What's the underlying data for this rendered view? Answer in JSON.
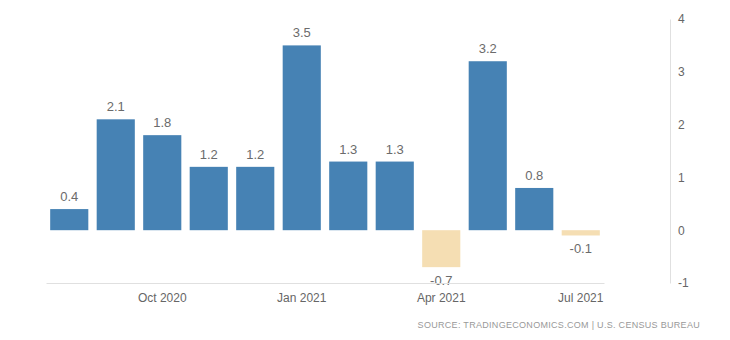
{
  "chart_data": {
    "type": "bar",
    "categories": [
      null,
      null,
      "Oct 2020",
      null,
      null,
      "Jan 2021",
      null,
      null,
      "Apr 2021",
      null,
      null,
      "Jul 2021"
    ],
    "values": [
      0.4,
      2.1,
      1.8,
      1.2,
      1.2,
      3.5,
      1.3,
      1.3,
      -0.7,
      3.2,
      0.8,
      -0.1
    ],
    "colors": [
      "#4682b4",
      "#4682b4",
      "#4682b4",
      "#4682b4",
      "#4682b4",
      "#4682b4",
      "#4682b4",
      "#4682b4",
      "#f5deb3",
      "#4682b4",
      "#4682b4",
      "#f5deb3"
    ],
    "ylim": [
      -1,
      4
    ],
    "yticks": [
      -1,
      0,
      1,
      2,
      3,
      4
    ],
    "grid": false,
    "data_labels": true,
    "source": "SOURCE: TRADINGECONOMICS.COM | U.S. CENSUS BUREAU"
  }
}
